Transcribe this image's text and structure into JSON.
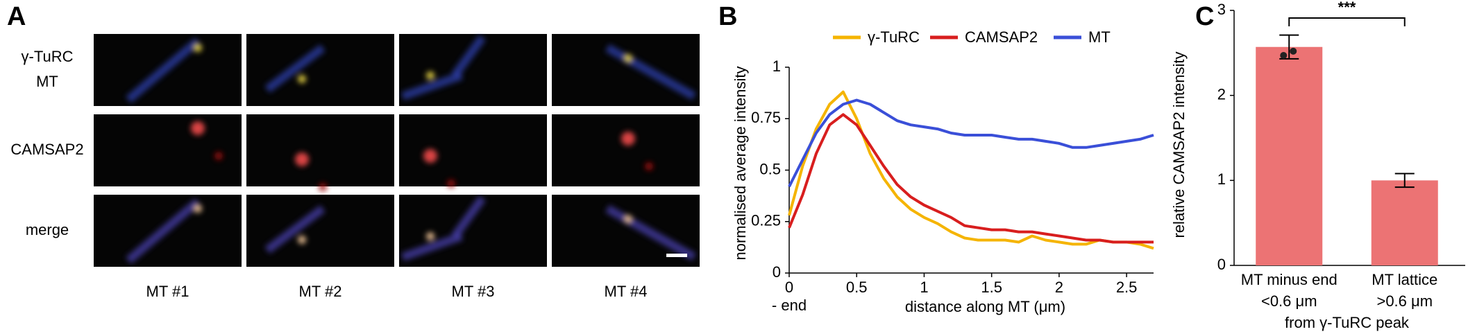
{
  "panel_labels": [
    "A",
    "B",
    "C"
  ],
  "microscopy": {
    "row_labels": [
      [
        "γ-TuRC",
        "MT"
      ],
      [
        "CAMSAP2"
      ],
      [
        "merge"
      ]
    ],
    "row_label_colors": [
      [
        "#f2c200",
        "#3a4fd8"
      ],
      [
        "#d81e1e"
      ],
      [
        "#000000"
      ]
    ],
    "column_labels": [
      "MT #1",
      "MT #2",
      "MT #3",
      "MT #4"
    ]
  },
  "chart_data": [
    {
      "type": "line",
      "y_label": "normalised average intensity",
      "x_label": "distance along MT (μm)",
      "x_origin_note": "- end",
      "x": [
        0,
        0.1,
        0.2,
        0.3,
        0.4,
        0.5,
        0.6,
        0.7,
        0.8,
        0.9,
        1.0,
        1.1,
        1.2,
        1.3,
        1.4,
        1.5,
        1.6,
        1.7,
        1.8,
        1.9,
        2.0,
        2.1,
        2.2,
        2.3,
        2.4,
        2.5,
        2.6,
        2.7
      ],
      "series": [
        {
          "name": "γ-TuRC",
          "color": "#f5b400",
          "values": [
            0.28,
            0.52,
            0.7,
            0.82,
            0.88,
            0.75,
            0.58,
            0.46,
            0.37,
            0.31,
            0.27,
            0.24,
            0.2,
            0.17,
            0.16,
            0.16,
            0.16,
            0.15,
            0.18,
            0.16,
            0.15,
            0.14,
            0.14,
            0.16,
            0.15,
            0.15,
            0.14,
            0.12
          ]
        },
        {
          "name": "CAMSAP2",
          "color": "#d81e1e",
          "values": [
            0.22,
            0.38,
            0.58,
            0.72,
            0.77,
            0.72,
            0.62,
            0.52,
            0.43,
            0.37,
            0.33,
            0.3,
            0.27,
            0.23,
            0.22,
            0.21,
            0.21,
            0.2,
            0.2,
            0.19,
            0.18,
            0.17,
            0.16,
            0.16,
            0.15,
            0.15,
            0.15,
            0.15
          ]
        },
        {
          "name": "MT",
          "color": "#3a4fd8",
          "values": [
            0.42,
            0.55,
            0.68,
            0.77,
            0.82,
            0.84,
            0.82,
            0.78,
            0.74,
            0.72,
            0.71,
            0.7,
            0.68,
            0.67,
            0.67,
            0.67,
            0.66,
            0.65,
            0.65,
            0.64,
            0.63,
            0.61,
            0.61,
            0.62,
            0.63,
            0.64,
            0.65,
            0.67
          ]
        }
      ],
      "xlim": [
        0,
        2.7
      ],
      "xticks": [
        0,
        0.5,
        1,
        1.5,
        2,
        2.5
      ],
      "ylim": [
        0,
        1
      ],
      "yticks": [
        0,
        0.25,
        0.5,
        0.75,
        1
      ],
      "legend": "top"
    },
    {
      "type": "bar",
      "y_label": "relative CAMSAP2 intensity",
      "categories": [
        "MT minus end",
        "MT lattice"
      ],
      "category_sublabels": [
        "<0.6 μm",
        ">0.6 μm"
      ],
      "x_label": "from γ-TuRC peak",
      "values": [
        2.57,
        1.0
      ],
      "errors": [
        0.14,
        0.08
      ],
      "points": [
        2.47,
        2.52
      ],
      "color": "#ec7374",
      "significance": "***",
      "ylim": [
        0,
        3
      ],
      "yticks": [
        0,
        1,
        2,
        3
      ]
    }
  ]
}
